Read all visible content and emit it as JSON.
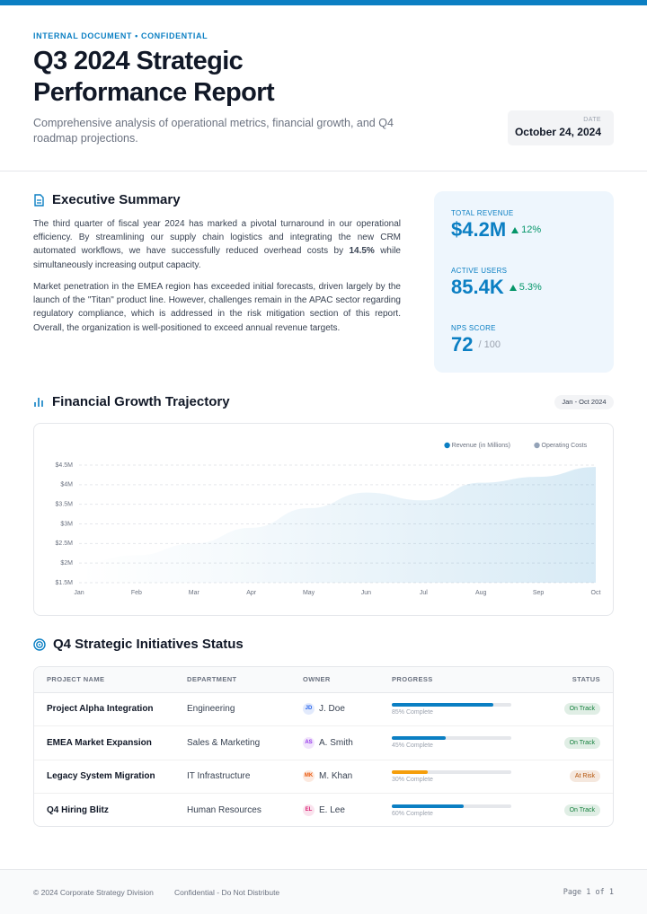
{
  "header": {
    "kicker": "INTERNAL DOCUMENT • CONFIDENTIAL",
    "title_line1": "Q3 2024 Strategic",
    "title_line2": "Performance Report",
    "subtitle": "Comprehensive analysis of operational metrics, financial growth, and Q4 roadmap projections.",
    "date_label": "DATE",
    "date": "October 24, 2024"
  },
  "summary": {
    "title": "Executive Summary",
    "p1_before": "The third quarter of fiscal year 2024 has marked a pivotal turnaround in our operational efficiency. By streamlining our supply chain logistics and integrating the new CRM automated workflows, we have successfully reduced overhead costs by ",
    "p1_bold": "14.5%",
    "p1_after": " while simultaneously increasing output capacity.",
    "p2": "Market penetration in the EMEA region has exceeded initial forecasts, driven largely by the launch of the \"Titan\" product line. However, challenges remain in the APAC sector regarding regulatory compliance, which is addressed in the risk mitigation section of this report. Overall, the organization is well-positioned to exceed annual revenue targets."
  },
  "metrics": [
    {
      "label": "TOTAL REVENUE",
      "value": "$4.2M",
      "change": "12%"
    },
    {
      "label": "ACTIVE USERS",
      "value": "85.4K",
      "change": "5.3%"
    },
    {
      "label": "NPS SCORE",
      "value": "72",
      "suffix": "/ 100"
    }
  ],
  "chart_section": {
    "title": "Financial Growth Trajectory",
    "badge": "Jan - Oct 2024"
  },
  "chart_data": {
    "type": "area",
    "categories": [
      "Jan",
      "Feb",
      "Mar",
      "Apr",
      "May",
      "Jun",
      "Jul",
      "Aug",
      "Sep",
      "Oct"
    ],
    "series": [
      {
        "name": "Revenue (in Millions)",
        "color": "#0b7fc3",
        "values": [
          2.0,
          2.2,
          2.5,
          2.9,
          3.4,
          3.8,
          3.6,
          4.05,
          4.2,
          4.45
        ]
      },
      {
        "name": "Operating Costs",
        "color": "#94a3b8",
        "values": [
          null,
          null,
          null,
          null,
          null,
          null,
          null,
          null,
          null,
          null
        ]
      }
    ],
    "ylim": [
      1.5,
      4.5
    ],
    "yticks": [
      {
        "value": 1.5,
        "label": "$1.5M"
      },
      {
        "value": 2,
        "label": "$2M"
      },
      {
        "value": 2.5,
        "label": "$2.5M"
      },
      {
        "value": 3,
        "label": "$3M"
      },
      {
        "value": 3.5,
        "label": "$3.5M"
      },
      {
        "value": 4,
        "label": "$4M"
      },
      {
        "value": 4.5,
        "label": "$4.5M"
      }
    ],
    "grid": true,
    "legend": "top-right"
  },
  "initiatives": {
    "title": "Q4 Strategic Initiatives Status",
    "columns": [
      "PROJECT NAME",
      "DEPARTMENT",
      "OWNER",
      "PROGRESS",
      "STATUS"
    ],
    "rows": [
      {
        "name": "Project Alpha Integration",
        "department": "Engineering",
        "initials": "JD",
        "owner": "J. Doe",
        "avatar_color": "#2563eb",
        "progress": 85,
        "progress_label": "85% Complete",
        "progress_color": "#0b7fc3",
        "status": "On Track",
        "status_color": "#15803d"
      },
      {
        "name": "EMEA Market Expansion",
        "department": "Sales & Marketing",
        "initials": "AS",
        "owner": "A. Smith",
        "avatar_color": "#9333ea",
        "progress": 45,
        "progress_label": "45% Complete",
        "progress_color": "#0b7fc3",
        "status": "On Track",
        "status_color": "#15803d"
      },
      {
        "name": "Legacy System Migration",
        "department": "IT Infrastructure",
        "initials": "MK",
        "owner": "M. Khan",
        "avatar_color": "#ea580c",
        "progress": 30,
        "progress_label": "30% Complete",
        "progress_color": "#f59e0b",
        "status": "At Risk",
        "status_color": "#b45309"
      },
      {
        "name": "Q4 Hiring Blitz",
        "department": "Human Resources",
        "initials": "EL",
        "owner": "E. Lee",
        "avatar_color": "#db2777",
        "progress": 60,
        "progress_label": "60% Complete",
        "progress_color": "#0b7fc3",
        "status": "On Track",
        "status_color": "#15803d"
      }
    ]
  },
  "footer": {
    "copyright": "© 2024 Corporate Strategy Division",
    "note": "Confidential - Do Not Distribute",
    "page": "Page 1 of 1"
  }
}
